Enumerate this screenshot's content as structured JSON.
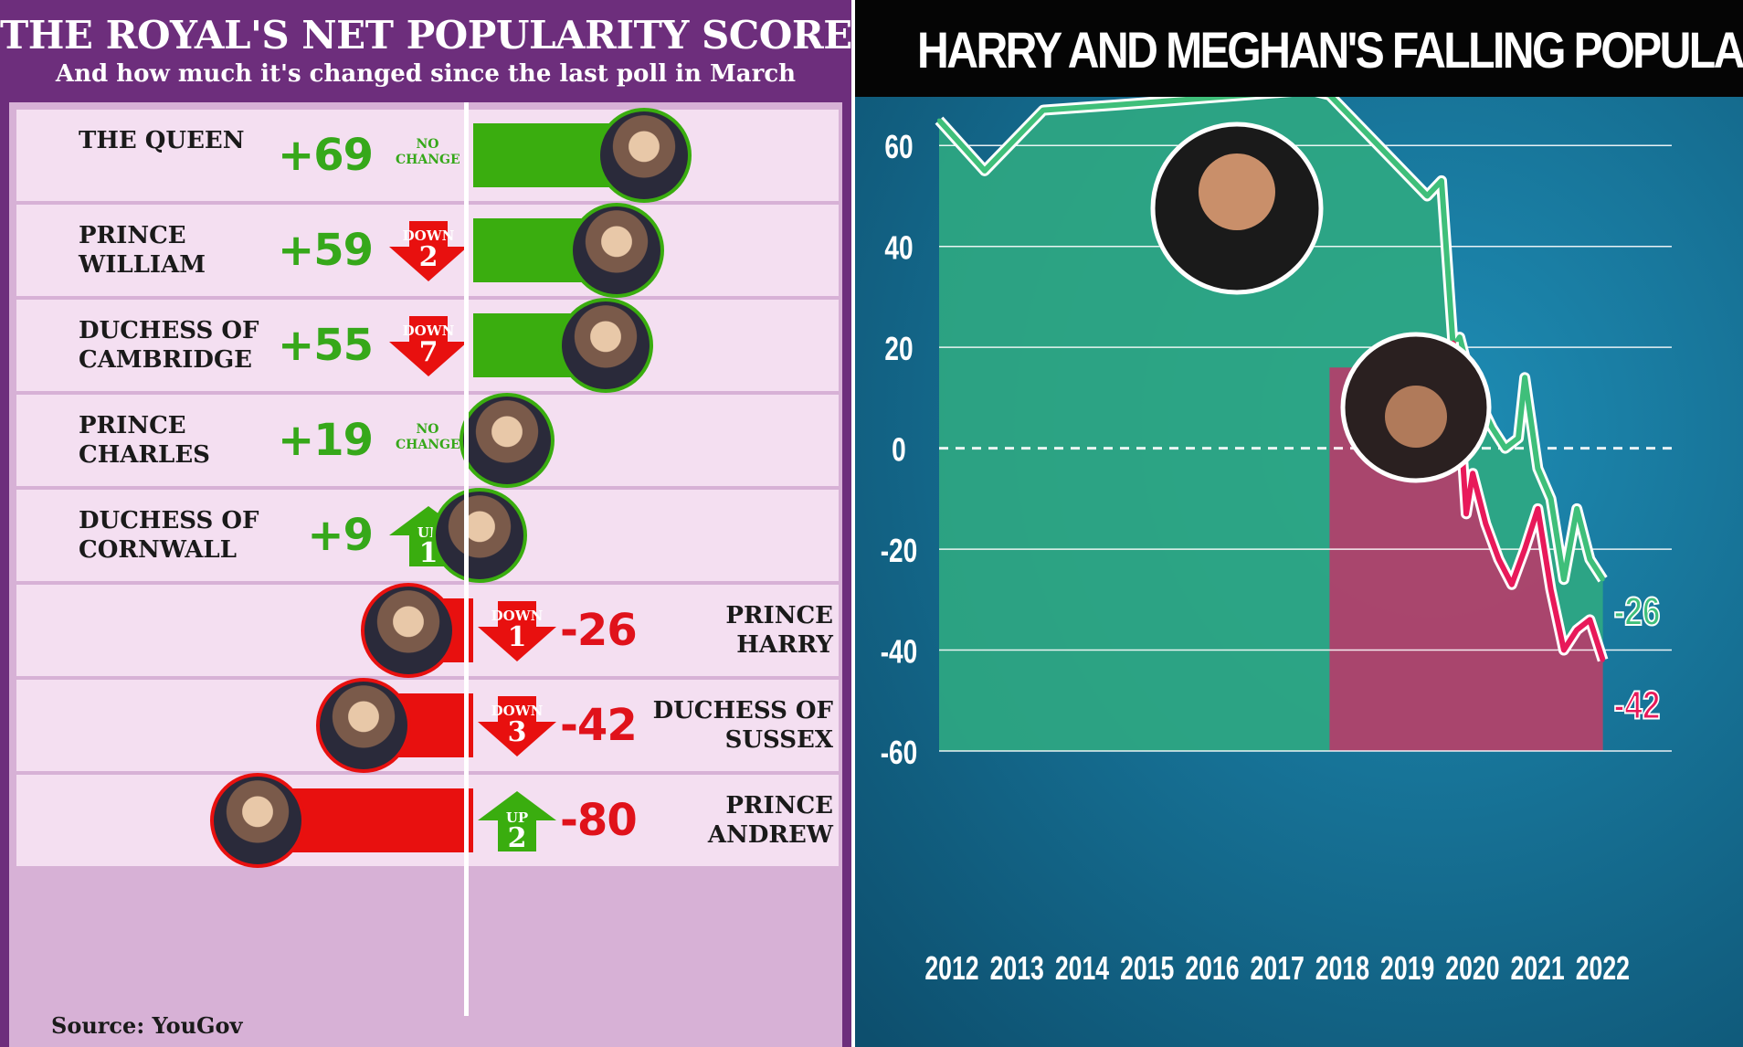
{
  "left_chart": {
    "title": "THE ROYAL'S NET POPULARITY SCORE",
    "subtitle": "And how much it's changed since the last poll in March",
    "source": "Source: YouGov",
    "rows": [
      {
        "name": "THE QUEEN",
        "score": "+69",
        "change_type": "none",
        "change_text": "NO\nCHANGE",
        "change_num": ""
      },
      {
        "name": "PRINCE\nWILLIAM",
        "score": "+59",
        "change_type": "down",
        "change_word": "DOWN",
        "change_num": "2"
      },
      {
        "name": "DUCHESS OF\nCAMBRIDGE",
        "score": "+55",
        "change_type": "down",
        "change_word": "DOWN",
        "change_num": "7"
      },
      {
        "name": "PRINCE\nCHARLES",
        "score": "+19",
        "change_type": "none",
        "change_text": "NO\nCHANGE",
        "change_num": ""
      },
      {
        "name": "DUCHESS OF\nCORNWALL",
        "score": "+9",
        "change_type": "up",
        "change_word": "UP",
        "change_num": "1"
      },
      {
        "name": "PRINCE\nHARRY",
        "score": "-26",
        "change_type": "down",
        "change_word": "DOWN",
        "change_num": "1"
      },
      {
        "name": "DUCHESS OF\nSUSSEX",
        "score": "-42",
        "change_type": "down",
        "change_word": "DOWN",
        "change_num": "3"
      },
      {
        "name": "PRINCE\nANDREW",
        "score": "-80",
        "change_type": "up",
        "change_word": "UP",
        "change_num": "2"
      }
    ]
  },
  "right_chart": {
    "title": "HARRY AND MEGHAN'S FALLING POPULARITY",
    "end_labels": [
      "-26",
      "-42"
    ]
  },
  "colors": {
    "positive": "#3aad0f",
    "negative": "#e8100f",
    "left_background": "#6d2e7c",
    "row_background": "#f4dff1",
    "harry_line": "#3fbf7a",
    "meghan_line": "#e8195a",
    "harry_area": "#2fa882",
    "meghan_area": "#b0406c",
    "chart_background": "#1a6e8c"
  },
  "chart_data": [
    {
      "type": "bar",
      "title": "THE ROYAL'S NET POPULARITY SCORE",
      "subtitle": "And how much it's changed since the last poll in March",
      "orientation": "horizontal",
      "categories": [
        "THE QUEEN",
        "PRINCE WILLIAM",
        "DUCHESS OF CAMBRIDGE",
        "PRINCE CHARLES",
        "DUCHESS OF CORNWALL",
        "PRINCE HARRY",
        "DUCHESS OF SUSSEX",
        "PRINCE ANDREW"
      ],
      "values": [
        69,
        59,
        55,
        19,
        9,
        -26,
        -42,
        -80
      ],
      "changes": [
        "NO CHANGE",
        "DOWN 2",
        "DOWN 7",
        "NO CHANGE",
        "UP 1",
        "DOWN 1",
        "DOWN 3",
        "UP 2"
      ],
      "xlim": [
        -80,
        80
      ],
      "grid": false
    },
    {
      "type": "line",
      "title": "HARRY AND MEGHAN'S FALLING POPULARITY",
      "x_ticks": [
        "2012",
        "2013",
        "2014",
        "2015",
        "2016",
        "2017",
        "2018",
        "2019",
        "2020",
        "2021",
        "2022"
      ],
      "y_ticks": [
        "60",
        "40",
        "20",
        "0",
        "-20",
        "-40",
        "-60"
      ],
      "ylim": [
        -60,
        70
      ],
      "xlim": [
        2012,
        2022.5
      ],
      "grid": true,
      "legend": "none",
      "series": [
        {
          "name": "",
          "x": [
            2012.0,
            2012.7,
            2013.6,
            2014.7,
            2017.7,
            2018.0,
            2019.5,
            2019.72,
            2019.9,
            2020.0,
            2020.2,
            2020.5,
            2020.7,
            2020.9,
            2021.0,
            2021.2,
            2021.4,
            2021.6,
            2021.8,
            2022.0,
            2022.2
          ],
          "y": [
            65,
            55,
            67,
            68,
            71,
            70,
            50,
            53,
            20,
            22,
            12,
            4,
            0,
            2,
            14,
            -4,
            -10,
            -26,
            -12,
            -22,
            -26
          ]
        },
        {
          "name": "",
          "x": [
            2019.9,
            2020.0,
            2020.1,
            2020.2,
            2020.4,
            2020.6,
            2020.8,
            2021.0,
            2021.2,
            2021.4,
            2021.6,
            2021.8,
            2022.0,
            2022.2
          ],
          "y": [
            21,
            7,
            -13,
            -5,
            -15,
            -22,
            -27,
            -20,
            -12,
            -28,
            -40,
            -36,
            -34,
            -42
          ]
        }
      ]
    }
  ]
}
